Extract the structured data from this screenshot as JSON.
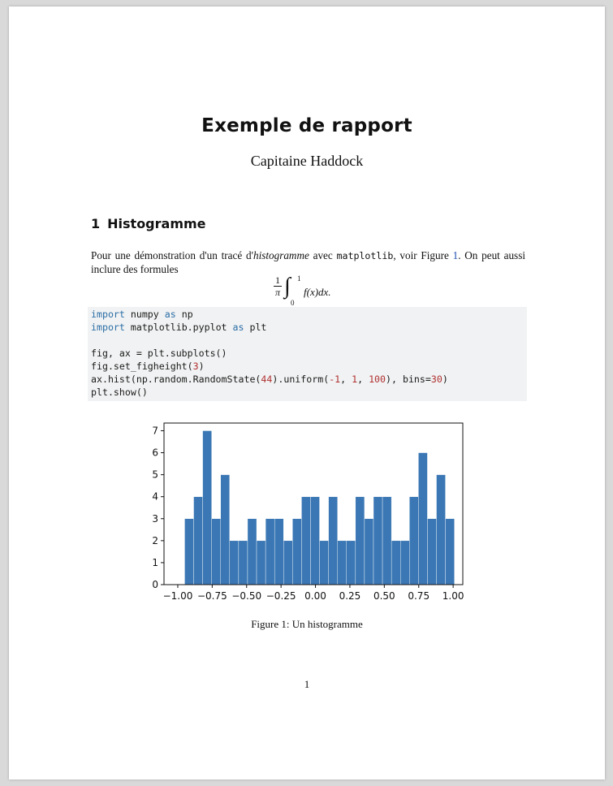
{
  "document": {
    "title": "Exemple de rapport",
    "author": "Capitaine Haddock",
    "page_number": "1"
  },
  "section": {
    "number": "1",
    "title": "Histogramme"
  },
  "paragraph": {
    "text_1": "Pour une démonstration d'un tracé d'",
    "emph": "histogramme",
    "text_2": " avec ",
    "code": "matplotlib",
    "text_3": ", voir Figure ",
    "ref": "1",
    "text_4": ". On peut aussi inclure des formules"
  },
  "formula": {
    "numerator": "1",
    "denominator": "π",
    "integral": "∫",
    "upper": "1",
    "lower": "0",
    "integrand": "f(x)dx."
  },
  "code_block": {
    "lines": [
      {
        "kw1": "import",
        "t1": " numpy ",
        "kw2": "as",
        "t2": " np"
      },
      {
        "kw1": "import",
        "t1": " matplotlib.pyplot ",
        "kw2": "as",
        "t2": " plt"
      },
      {
        "plain": ""
      },
      {
        "plain": "fig, ax = plt.subplots()"
      },
      {
        "a": "fig.set_figheight(",
        "n1": "3",
        "b": ")"
      },
      {
        "a": "ax.hist(np.random.RandomState(",
        "n1": "44",
        "b": ").uniform(",
        "n2": "-1",
        "c": ", ",
        "n3": "1",
        "d": ", ",
        "n4": "100",
        "e": "), bins=",
        "n5": "30",
        "f": ")"
      },
      {
        "plain": "plt.show()"
      }
    ]
  },
  "figure": {
    "caption": "Figure 1: Un histogramme"
  },
  "chart_data": {
    "type": "bar",
    "title": "",
    "xlabel": "",
    "ylabel": "",
    "bar_color": "#3a77b4",
    "bin_start": -0.95,
    "bin_width": 0.0653,
    "values": [
      3,
      4,
      7,
      3,
      5,
      2,
      2,
      3,
      2,
      3,
      3,
      2,
      3,
      4,
      4,
      2,
      4,
      2,
      2,
      4,
      3,
      4,
      4,
      2,
      2,
      4,
      6,
      3,
      5,
      3
    ],
    "xlim": [
      -1.1,
      1.07
    ],
    "ylim": [
      0,
      7.35
    ],
    "x_ticks": [
      -1.0,
      -0.75,
      -0.5,
      -0.25,
      0.0,
      0.25,
      0.5,
      0.75,
      1.0
    ],
    "x_tick_labels": [
      "−1.00",
      "−0.75",
      "−0.50",
      "−0.25",
      "0.00",
      "0.25",
      "0.50",
      "0.75",
      "1.00"
    ],
    "y_ticks": [
      0,
      1,
      2,
      3,
      4,
      5,
      6,
      7
    ],
    "y_tick_labels": [
      "0",
      "1",
      "2",
      "3",
      "4",
      "5",
      "6",
      "7"
    ],
    "grid": false,
    "legend": "none"
  }
}
